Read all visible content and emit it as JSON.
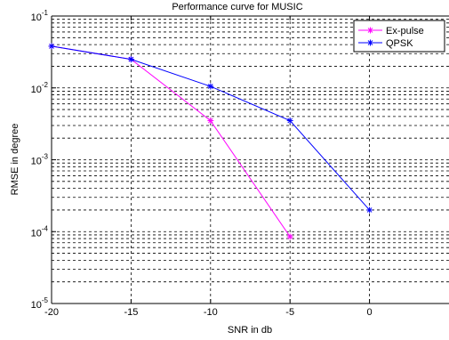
{
  "chart_data": {
    "type": "line",
    "title": "Performance curve for MUSIC",
    "xlabel": "SNR in db",
    "ylabel": "RMSE in degree",
    "xlim": [
      -20,
      5
    ],
    "ylim": [
      1e-05,
      0.1
    ],
    "yscale": "log",
    "grid": true,
    "legend_position": "top-right",
    "x_ticks": [
      {
        "value": -20,
        "label": "-20"
      },
      {
        "value": -15,
        "label": "-15"
      },
      {
        "value": -10,
        "label": "-10"
      },
      {
        "value": -5,
        "label": "-5"
      },
      {
        "value": 0,
        "label": "0"
      }
    ],
    "y_ticks": [
      {
        "value": 1e-05,
        "base": "10",
        "exp": "-5"
      },
      {
        "value": 0.0001,
        "base": "10",
        "exp": "-4"
      },
      {
        "value": 0.001,
        "base": "10",
        "exp": "-3"
      },
      {
        "value": 0.01,
        "base": "10",
        "exp": "-2"
      },
      {
        "value": 0.1,
        "base": "10",
        "exp": "-1"
      }
    ],
    "series": [
      {
        "name": "Ex-pulse",
        "color": "#ff00ff",
        "marker": "asterisk",
        "x": [
          -20,
          -15,
          -10,
          -5
        ],
        "y": [
          0.038,
          0.025,
          0.0035,
          8.5e-05
        ]
      },
      {
        "name": "QPSK",
        "color": "#0000ff",
        "marker": "asterisk",
        "x": [
          -20,
          -15,
          -10,
          -5,
          0
        ],
        "y": [
          0.038,
          0.025,
          0.0105,
          0.0035,
          0.0002
        ]
      }
    ]
  }
}
